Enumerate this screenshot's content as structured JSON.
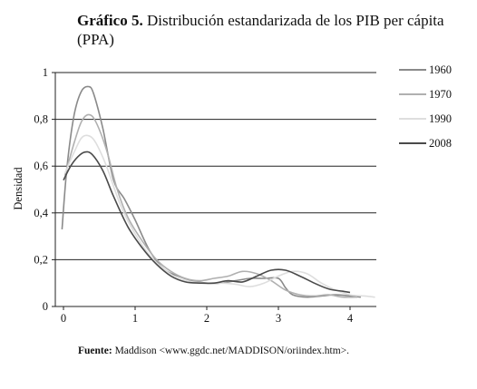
{
  "title": {
    "prefix": "Gráfico 5.",
    "text": "Distribución estandarizada de los PIB per cápita (PPA)"
  },
  "source": {
    "label": "Fuente:",
    "text": "Maddison <www.ggdc.net/MADDISON/oriindex.htm>."
  },
  "chart_data": {
    "type": "line",
    "title": "Distribución estandarizada de los PIB per cápita (PPA)",
    "xlabel": "",
    "ylabel": "Densidad",
    "xlim": [
      -0.1,
      4.4
    ],
    "ylim": [
      0,
      1
    ],
    "xticks": [
      0,
      1,
      2,
      3,
      4
    ],
    "yticks": [
      0,
      0.2,
      0.4,
      0.6,
      0.8,
      1
    ],
    "ytick_labels": [
      "0",
      "0,2",
      "0,4",
      "0,6",
      "0,8",
      "1"
    ],
    "grid": "horizontal",
    "legend_position": "right",
    "series": [
      {
        "name": "1960",
        "color": "#8a8a8a",
        "points": [
          [
            -0.02,
            0.33
          ],
          [
            0.05,
            0.6
          ],
          [
            0.15,
            0.82
          ],
          [
            0.25,
            0.92
          ],
          [
            0.35,
            0.94
          ],
          [
            0.42,
            0.91
          ],
          [
            0.55,
            0.76
          ],
          [
            0.7,
            0.54
          ],
          [
            0.85,
            0.46
          ],
          [
            1.0,
            0.37
          ],
          [
            1.2,
            0.24
          ],
          [
            1.4,
            0.16
          ],
          [
            1.6,
            0.13
          ],
          [
            1.8,
            0.11
          ],
          [
            2.0,
            0.1
          ],
          [
            2.2,
            0.1
          ],
          [
            2.4,
            0.11
          ],
          [
            2.6,
            0.12
          ],
          [
            2.8,
            0.12
          ],
          [
            3.0,
            0.12
          ],
          [
            3.1,
            0.08
          ],
          [
            3.2,
            0.05
          ],
          [
            3.4,
            0.04
          ],
          [
            3.6,
            0.045
          ],
          [
            3.8,
            0.05
          ],
          [
            4.0,
            0.045
          ],
          [
            4.15,
            0.04
          ]
        ]
      },
      {
        "name": "1970",
        "color": "#b0b0b0",
        "points": [
          [
            0.02,
            0.56
          ],
          [
            0.15,
            0.7
          ],
          [
            0.25,
            0.79
          ],
          [
            0.35,
            0.82
          ],
          [
            0.45,
            0.79
          ],
          [
            0.6,
            0.67
          ],
          [
            0.75,
            0.5
          ],
          [
            0.9,
            0.38
          ],
          [
            1.1,
            0.28
          ],
          [
            1.3,
            0.2
          ],
          [
            1.5,
            0.15
          ],
          [
            1.7,
            0.12
          ],
          [
            1.9,
            0.11
          ],
          [
            2.1,
            0.12
          ],
          [
            2.3,
            0.13
          ],
          [
            2.5,
            0.15
          ],
          [
            2.7,
            0.14
          ],
          [
            2.9,
            0.11
          ],
          [
            3.1,
            0.07
          ],
          [
            3.3,
            0.05
          ],
          [
            3.5,
            0.045
          ],
          [
            3.7,
            0.05
          ],
          [
            3.9,
            0.04
          ],
          [
            4.1,
            0.04
          ]
        ]
      },
      {
        "name": "1990",
        "color": "#dedede",
        "points": [
          [
            0.02,
            0.57
          ],
          [
            0.15,
            0.66
          ],
          [
            0.25,
            0.72
          ],
          [
            0.35,
            0.73
          ],
          [
            0.45,
            0.7
          ],
          [
            0.6,
            0.6
          ],
          [
            0.8,
            0.43
          ],
          [
            1.0,
            0.31
          ],
          [
            1.2,
            0.22
          ],
          [
            1.4,
            0.16
          ],
          [
            1.6,
            0.12
          ],
          [
            1.8,
            0.105
          ],
          [
            2.0,
            0.1
          ],
          [
            2.2,
            0.1
          ],
          [
            2.4,
            0.095
          ],
          [
            2.6,
            0.085
          ],
          [
            2.8,
            0.1
          ],
          [
            3.0,
            0.13
          ],
          [
            3.2,
            0.15
          ],
          [
            3.4,
            0.14
          ],
          [
            3.6,
            0.1
          ],
          [
            3.8,
            0.07
          ],
          [
            4.0,
            0.05
          ],
          [
            4.2,
            0.045
          ],
          [
            4.35,
            0.04
          ]
        ]
      },
      {
        "name": "2008",
        "color": "#4a4a4a",
        "points": [
          [
            0.0,
            0.54
          ],
          [
            0.1,
            0.6
          ],
          [
            0.2,
            0.64
          ],
          [
            0.3,
            0.66
          ],
          [
            0.4,
            0.65
          ],
          [
            0.55,
            0.58
          ],
          [
            0.7,
            0.47
          ],
          [
            0.9,
            0.34
          ],
          [
            1.1,
            0.25
          ],
          [
            1.3,
            0.18
          ],
          [
            1.5,
            0.13
          ],
          [
            1.7,
            0.105
          ],
          [
            1.9,
            0.1
          ],
          [
            2.1,
            0.1
          ],
          [
            2.3,
            0.11
          ],
          [
            2.5,
            0.105
          ],
          [
            2.7,
            0.13
          ],
          [
            2.9,
            0.155
          ],
          [
            3.1,
            0.155
          ],
          [
            3.3,
            0.13
          ],
          [
            3.5,
            0.1
          ],
          [
            3.7,
            0.075
          ],
          [
            3.9,
            0.065
          ],
          [
            4.0,
            0.06
          ]
        ]
      }
    ]
  }
}
